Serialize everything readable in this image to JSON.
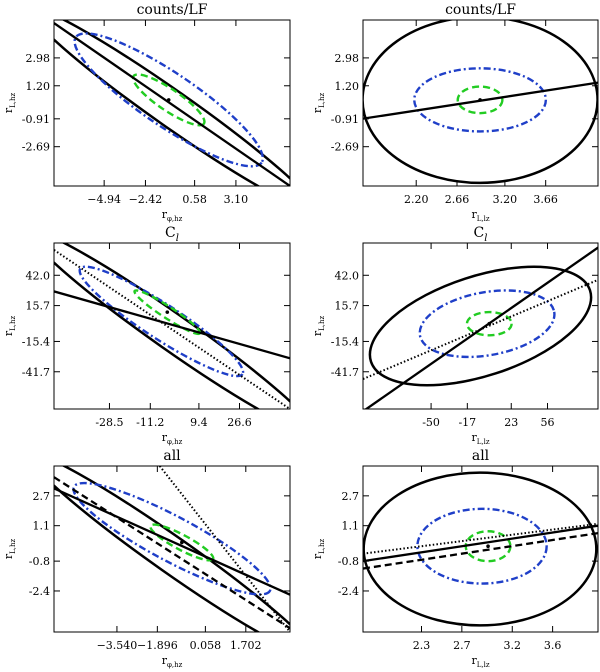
{
  "figure": {
    "description_free": true
  },
  "chart_data": [
    {
      "id": "p1",
      "type": "scatter",
      "title": "counts/LF",
      "xlabel_main": "r",
      "xlabel_sub": "φ,hz",
      "ylabel_main": "r",
      "ylabel_sub": "L,hz",
      "xlim": [
        -8.0,
        6.4
      ],
      "ylim": [
        -5.2,
        5.4
      ],
      "xticks": [
        -4.94,
        -2.42,
        0.58,
        3.1
      ],
      "xtick_labels": [
        "−4.94",
        "−2.42",
        "0.58",
        "3.10"
      ],
      "yticks": [
        -2.69,
        -0.91,
        1.2,
        2.98
      ],
      "ytick_labels": [
        "-2.69",
        "-0.91",
        "1.20",
        "2.98"
      ],
      "center": [
        -1.0,
        0.3
      ],
      "ellipses": [
        {
          "style": "solid",
          "color": "#000000",
          "corners": [
            [
              -8.0,
              5.4
            ],
            [
              -8.0,
              2.9
            ],
            [
              6.4,
              -5.2
            ],
            [
              3.8,
              -5.2
            ]
          ]
        },
        {
          "style": "dashdot",
          "color": "#1f3fc8",
          "cx": -1.0,
          "cy": 0.3,
          "rx_frac": 0.95,
          "ry_frac": 0.32,
          "angle_deg": 34
        },
        {
          "style": "dashed",
          "color": "#22cc22",
          "cx": -1.0,
          "cy": 0.3,
          "rx_frac": 0.36,
          "ry_frac": 0.13,
          "angle_deg": 34
        }
      ],
      "lines": [
        {
          "style": "solid",
          "points": [
            [
              -8.0,
              5.2
            ],
            [
              6.4,
              -5.2
            ]
          ]
        }
      ]
    },
    {
      "id": "p2",
      "type": "scatter",
      "title": "counts/LF",
      "xlabel_main": "r",
      "xlabel_sub": "L,lz",
      "ylabel_main": "r",
      "ylabel_sub": "L,hz",
      "xlim": [
        1.6,
        4.25
      ],
      "ylim": [
        -5.2,
        5.4
      ],
      "xticks": [
        2.2,
        2.66,
        3.2,
        3.66
      ],
      "xtick_labels": [
        "2.20",
        "2.66",
        "3.20",
        "3.66"
      ],
      "yticks": [
        -2.69,
        -0.91,
        1.2,
        2.98
      ],
      "ytick_labels": [
        "-2.69",
        "-0.91",
        "1.20",
        "2.98"
      ],
      "center": [
        2.92,
        0.3
      ],
      "ellipses": [
        {
          "style": "solid",
          "color": "#000000",
          "cx": 2.92,
          "cy": 0.3,
          "rx_frac": 1.0,
          "ry_frac": 1.0,
          "angle_deg": 0
        },
        {
          "style": "dashdot",
          "color": "#1f3fc8",
          "cx": 2.92,
          "cy": 0.3,
          "rx_frac": 0.56,
          "ry_frac": 0.38,
          "angle_deg": 0
        },
        {
          "style": "dashed",
          "color": "#22cc22",
          "cx": 2.92,
          "cy": 0.3,
          "rx_frac": 0.19,
          "ry_frac": 0.16,
          "angle_deg": 0
        }
      ],
      "lines": [
        {
          "style": "solid",
          "points": [
            [
              1.6,
              -0.9
            ],
            [
              4.25,
              1.4
            ]
          ]
        }
      ]
    },
    {
      "id": "p3",
      "type": "scatter",
      "title": "C",
      "title_sub": "l",
      "xlabel_main": "r",
      "xlabel_sub": "φ,hz",
      "ylabel_main": "r",
      "ylabel_sub": "L,hz",
      "xlim": [
        -52,
        48
      ],
      "ylim": [
        -74,
        70
      ],
      "xticks": [
        -28.5,
        -11.2,
        9.4,
        26.6
      ],
      "xtick_labels": [
        "-28.5",
        "-11.2",
        "9.4",
        "26.6"
      ],
      "yticks": [
        -41.7,
        -15.4,
        15.7,
        42.0
      ],
      "ytick_labels": [
        "-41.7",
        "-15.4",
        "15.7",
        "42.0"
      ],
      "center": [
        -4.0,
        10.0
      ],
      "ellipses": [
        {
          "style": "solid",
          "color": "#000000",
          "corners": [
            [
              -52,
              70
            ],
            [
              -52,
              61
            ],
            [
              48,
              -74
            ],
            [
              46,
              -74
            ]
          ]
        },
        {
          "style": "dashdot",
          "color": "#1f3fc8",
          "cx": -6.5,
          "cy": 2.0,
          "rx_frac": 0.82,
          "ry_frac": 0.21,
          "angle_deg": 33
        },
        {
          "style": "dashed",
          "color": "#22cc22",
          "cx": -4.0,
          "cy": 10.0,
          "rx_frac": 0.33,
          "ry_frac": 0.07,
          "angle_deg": 33
        }
      ],
      "lines": [
        {
          "style": "solid",
          "points": [
            [
              -52,
              28
            ],
            [
              48,
              -30
            ]
          ]
        },
        {
          "style": "dotted",
          "points": [
            [
              -52,
              64
            ],
            [
              48,
              -74
            ]
          ]
        }
      ]
    },
    {
      "id": "p4",
      "type": "scatter",
      "title": "C",
      "title_sub": "l",
      "xlabel_main": "r",
      "xlabel_sub": "L,lz",
      "ylabel_main": "r",
      "ylabel_sub": "L,hz",
      "xlim": [
        -112,
        102
      ],
      "ylim": [
        -74,
        70
      ],
      "xticks": [
        -50,
        -17,
        23,
        56
      ],
      "xtick_labels": [
        "-50",
        "-17",
        "23",
        "56"
      ],
      "yticks": [
        -41.7,
        -15.4,
        15.7,
        42.0
      ],
      "ytick_labels": [
        "-41.7",
        "-15.4",
        "15.7",
        "42.0"
      ],
      "center": [
        3.0,
        0.0
      ],
      "ellipses": [
        {
          "style": "solid",
          "color": "#000000",
          "cx": -5.0,
          "cy": -2.0,
          "rx_frac": 0.98,
          "ry_frac": 0.6,
          "angle_deg": -18
        },
        {
          "style": "dashdot",
          "color": "#1f3fc8",
          "cx": 1.0,
          "cy": 0.0,
          "rx_frac": 0.58,
          "ry_frac": 0.38,
          "angle_deg": -10
        },
        {
          "style": "dashed",
          "color": "#22cc22",
          "cx": 3.0,
          "cy": 0.0,
          "rx_frac": 0.19,
          "ry_frac": 0.14,
          "angle_deg": 0
        }
      ],
      "lines": [
        {
          "style": "solid",
          "points": [
            [
              -112,
              -76
            ],
            [
              102,
              66
            ]
          ]
        },
        {
          "style": "dotted",
          "points": [
            [
              -112,
              -48
            ],
            [
              102,
              38
            ]
          ]
        }
      ]
    },
    {
      "id": "p5",
      "type": "scatter",
      "title": "all",
      "xlabel_main": "r",
      "xlabel_sub": "φ,hz",
      "ylabel_main": "r",
      "ylabel_sub": "L,hz",
      "xlim": [
        -6.1,
        3.5
      ],
      "ylim": [
        -4.6,
        4.3
      ],
      "xticks": [
        -3.54,
        -1.896,
        0.058,
        1.702
      ],
      "xtick_labels": [
        "−3.540",
        "−1.896",
        "0.058",
        "1.702"
      ],
      "yticks": [
        -2.4,
        -0.8,
        1.1,
        2.7
      ],
      "ytick_labels": [
        "-2.4",
        "-0.8",
        "1.1",
        "2.7"
      ],
      "center": [
        -0.9,
        0.2
      ],
      "ellipses": [
        {
          "style": "solid",
          "color": "#000000",
          "corners": [
            [
              -6.1,
              4.3
            ],
            [
              -6.1,
              3.0
            ],
            [
              3.5,
              -4.6
            ],
            [
              3.2,
              -4.6
            ]
          ]
        },
        {
          "style": "dashdot",
          "color": "#1f3fc8",
          "cx": -1.3,
          "cy": 0.4,
          "rx_frac": 0.94,
          "ry_frac": 0.27,
          "angle_deg": 28
        },
        {
          "style": "dashed",
          "color": "#22cc22",
          "cx": -0.9,
          "cy": 0.2,
          "rx_frac": 0.3,
          "ry_frac": 0.09,
          "angle_deg": 28
        }
      ],
      "lines": [
        {
          "style": "solid",
          "points": [
            [
              -6.1,
              3.1
            ],
            [
              3.5,
              -2.6
            ]
          ]
        },
        {
          "style": "dashed",
          "points": [
            [
              -6.1,
              3.7
            ],
            [
              3.5,
              -4.4
            ]
          ]
        },
        {
          "style": "dotted",
          "points": [
            [
              -1.8,
              4.3
            ],
            [
              3.5,
              -4.6
            ]
          ]
        }
      ]
    },
    {
      "id": "p6",
      "type": "scatter",
      "title": "all",
      "xlabel_main": "r",
      "xlabel_sub": "L,lz",
      "ylabel_main": "r",
      "ylabel_sub": "L,hz",
      "xlim": [
        1.72,
        4.05
      ],
      "ylim": [
        -4.6,
        4.3
      ],
      "xticks": [
        2.3,
        2.7,
        3.2,
        3.6
      ],
      "xtick_labels": [
        "2.3",
        "2.7",
        "3.2",
        "3.6"
      ],
      "yticks": [
        -2.4,
        -0.8,
        1.1,
        2.7
      ],
      "ytick_labels": [
        "-2.4",
        "-0.8",
        "1.1",
        "2.7"
      ],
      "center": [
        2.96,
        0.0
      ],
      "ellipses": [
        {
          "style": "solid",
          "color": "#000000",
          "cx": 2.88,
          "cy": -0.15,
          "rx_frac": 0.99,
          "ry_frac": 0.92,
          "angle_deg": 0
        },
        {
          "style": "dashdot",
          "color": "#1f3fc8",
          "cx": 2.9,
          "cy": 0.0,
          "rx_frac": 0.55,
          "ry_frac": 0.45,
          "angle_deg": 0
        },
        {
          "style": "dashed",
          "color": "#22cc22",
          "cx": 2.96,
          "cy": 0.0,
          "rx_frac": 0.19,
          "ry_frac": 0.18,
          "angle_deg": 0
        }
      ],
      "lines": [
        {
          "style": "solid",
          "points": [
            [
              1.72,
              -0.8
            ],
            [
              4.05,
              1.1
            ]
          ]
        },
        {
          "style": "dashed",
          "points": [
            [
              1.72,
              -1.2
            ],
            [
              4.05,
              0.7
            ]
          ]
        },
        {
          "style": "dotted",
          "points": [
            [
              1.72,
              -0.4
            ],
            [
              4.05,
              1.2
            ]
          ]
        }
      ]
    }
  ]
}
